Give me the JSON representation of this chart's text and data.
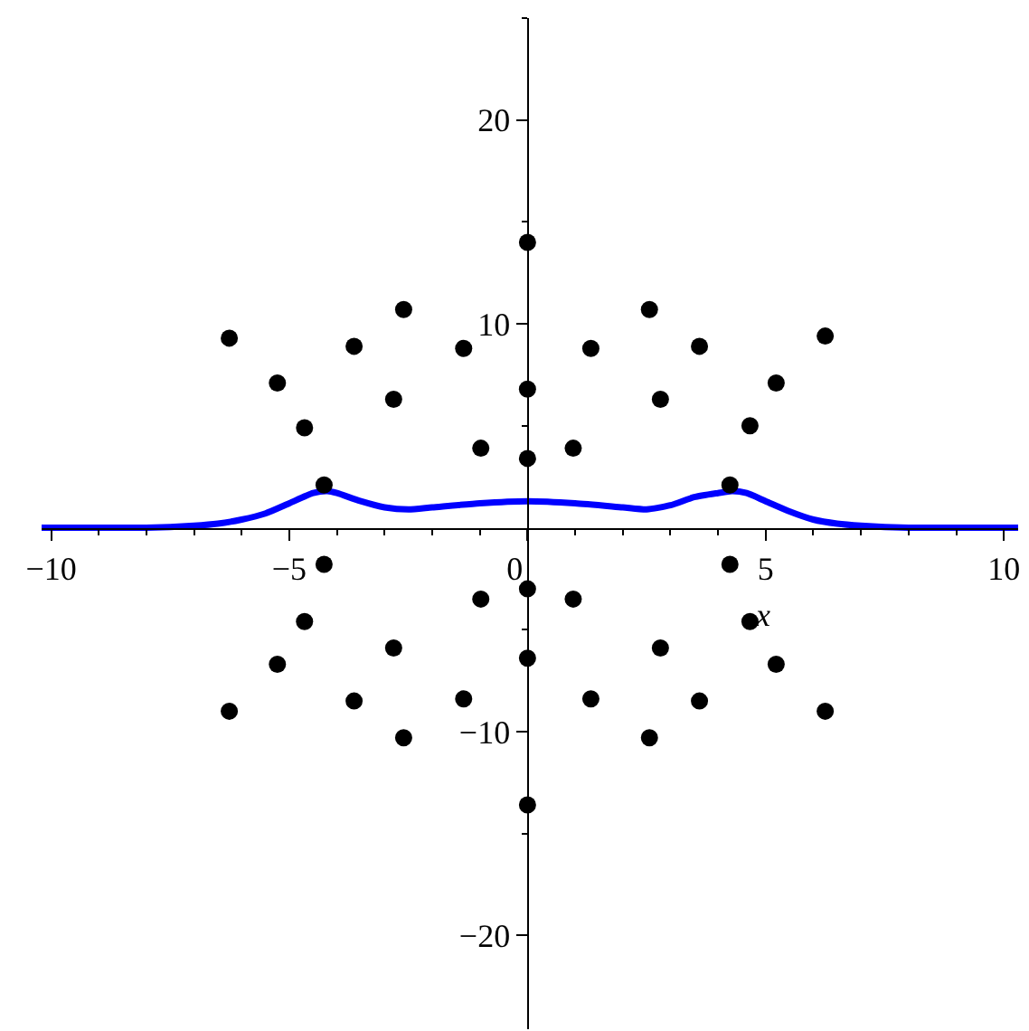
{
  "chart_data": {
    "type": "scatter",
    "xlabel": "x",
    "xlim": [
      -10.2,
      10.3
    ],
    "ylim": [
      -24.6,
      25
    ],
    "xticks": [
      -10,
      {
        "value": -9,
        "label": null
      },
      {
        "value": -8,
        "label": null
      },
      {
        "value": -7,
        "label": null
      },
      {
        "value": -6,
        "label": null
      },
      -5,
      {
        "value": -4,
        "label": null
      },
      {
        "value": -3,
        "label": null
      },
      {
        "value": -2,
        "label": null
      },
      {
        "value": -1,
        "label": null
      },
      0,
      {
        "value": 1,
        "label": null
      },
      {
        "value": 2,
        "label": null
      },
      {
        "value": 3,
        "label": null
      },
      {
        "value": 4,
        "label": null
      },
      5,
      {
        "value": 6,
        "label": null
      },
      {
        "value": 7,
        "label": null
      },
      {
        "value": 8,
        "label": null
      },
      {
        "value": 9,
        "label": null
      },
      10
    ],
    "yticks": [
      {
        "value": -15,
        "label": null
      },
      -20,
      -10,
      {
        "value": -5,
        "label": null
      },
      {
        "value": 5,
        "label": null
      },
      10,
      {
        "value": 15,
        "label": null
      },
      20,
      {
        "value": 25,
        "label": null
      }
    ],
    "series": [
      {
        "type": "line",
        "color": "#0000ff",
        "x": [
          -10.2,
          -9,
          -8,
          -7,
          -6.5,
          -6,
          -5.5,
          -5,
          -4.5,
          -4.2,
          -4,
          -3.5,
          -3,
          -2.5,
          -2,
          -1,
          0,
          1,
          2,
          2.5,
          3,
          3.5,
          4,
          4.3,
          4.6,
          5,
          5.5,
          6,
          6.5,
          7,
          8,
          9,
          10.3
        ],
        "values": [
          0,
          0,
          0,
          0.1,
          0.2,
          0.4,
          0.7,
          1.2,
          1.7,
          1.8,
          1.7,
          1.3,
          1.0,
          0.9,
          1.0,
          1.2,
          1.3,
          1.2,
          1.0,
          0.9,
          1.1,
          1.5,
          1.7,
          1.8,
          1.7,
          1.3,
          0.8,
          0.4,
          0.2,
          0.1,
          0,
          0,
          0
        ]
      },
      {
        "color": "#000000",
        "marker": "circle",
        "x": [
          -6.26,
          -5.25,
          -4.68,
          -4.27,
          -3.64,
          -2.81,
          -2.6,
          -1.34,
          -0.98,
          0,
          0,
          0,
          0.96,
          1.33,
          2.56,
          2.79,
          3.61,
          4.25,
          4.67,
          5.22,
          6.25,
          -6.26,
          -5.25,
          -4.68,
          -4.27,
          -3.64,
          -2.81,
          -2.6,
          -1.34,
          -0.98,
          0,
          0,
          0,
          0.96,
          1.33,
          2.56,
          2.79,
          3.61,
          4.25,
          4.67,
          5.22,
          6.25
        ],
        "values": [
          9.3,
          7.1,
          4.9,
          2.1,
          8.9,
          6.3,
          10.7,
          8.8,
          3.9,
          14.0,
          6.8,
          3.4,
          3.9,
          8.8,
          10.7,
          6.3,
          8.9,
          2.1,
          5.0,
          7.1,
          9.4,
          -9.0,
          -6.7,
          -4.6,
          -1.8,
          -8.5,
          -5.9,
          -10.3,
          -8.4,
          -3.5,
          -13.6,
          -6.4,
          -3.0,
          -3.5,
          -8.4,
          -10.3,
          -5.9,
          -8.5,
          -1.8,
          -4.6,
          -6.7,
          -9.0
        ]
      }
    ]
  }
}
